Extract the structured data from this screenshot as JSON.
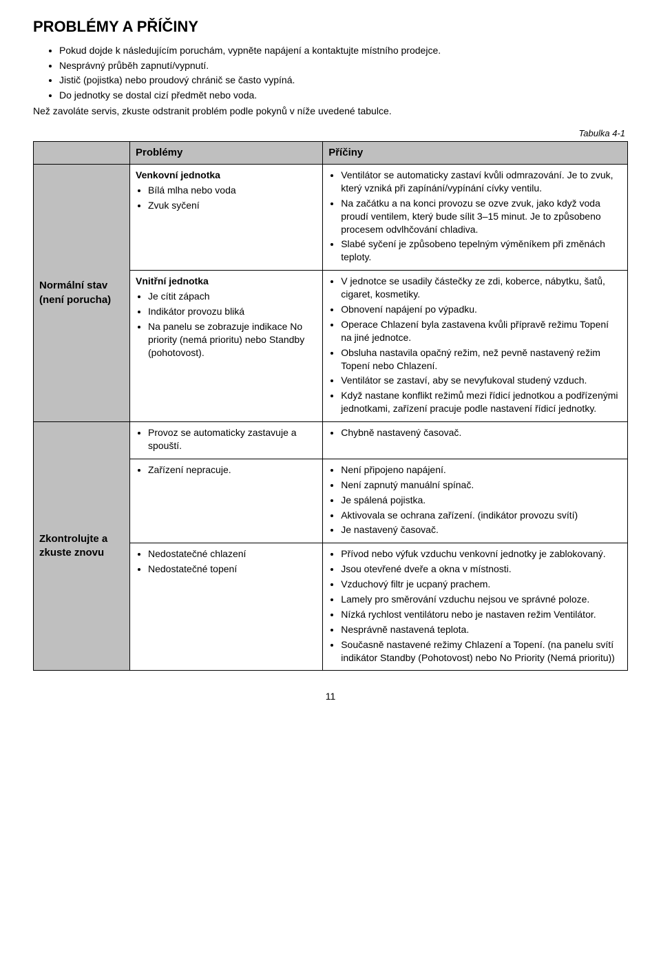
{
  "title": "PROBLÉMY A PŘÍČINY",
  "intro": {
    "bullets": [
      "Pokud dojde k následujícím poruchám, vypněte napájení a kontaktujte místního prodejce.",
      "Nesprávný průběh zapnutí/vypnutí.",
      "Jistič (pojistka) nebo proudový chránič se často vypíná.",
      "Do jednotky se dostal cizí předmět nebo voda."
    ],
    "note": "Než zavoláte servis, zkuste odstranit problém podle pokynů v níže uvedené tabulce."
  },
  "table_caption": "Tabulka 4-1",
  "headers": {
    "problems": "Problémy",
    "causes": "Příčiny"
  },
  "rows": {
    "normal": {
      "label": "Normální stav (není porucha)",
      "cells": [
        {
          "problem": {
            "subhead": "Venkovní jednotka",
            "items": [
              "Bílá mlha nebo voda",
              "Zvuk syčení"
            ]
          },
          "cause": {
            "items": [
              "Ventilátor se automaticky zastaví kvůli odmrazování. Je to zvuk, který vzniká při zapínání/vypínání cívky ventilu.",
              "Na začátku a na konci provozu se ozve zvuk, jako když voda proudí ventilem, který bude sílit 3–15 minut. Je to způsobeno procesem odvlhčování chladiva.",
              "Slabé syčení je způsobeno tepelným výměníkem při změnách teploty."
            ]
          }
        },
        {
          "problem": {
            "subhead": "Vnitřní jednotka",
            "items": [
              "Je cítit zápach",
              "Indikátor provozu bliká",
              "Na panelu se zobrazuje indikace No priority (nemá prioritu) nebo Standby (pohotovost)."
            ]
          },
          "cause": {
            "items": [
              "V jednotce se usadily částečky ze zdi, koberce, nábytku, šatů, cigaret, kosmetiky.",
              "Obnovení napájení po výpadku.",
              "Operace Chlazení byla zastavena kvůli přípravě režimu Topení na jiné jednotce.",
              "Obsluha nastavila opačný režim, než pevně nastavený režim Topení nebo Chlazení.",
              "Ventilátor se zastaví, aby se nevyfukoval studený vzduch.",
              "Když nastane konflikt režimů mezi řídicí jednotkou a podřízenými jednotkami, zařízení pracuje podle nastavení řídicí jednotky."
            ]
          }
        }
      ]
    },
    "check": {
      "label": "Zkontrolujte a zkuste znovu",
      "cells": [
        {
          "problem": {
            "items": [
              "Provoz se automaticky zastavuje a spouští."
            ]
          },
          "cause": {
            "items": [
              "Chybně nastavený časovač."
            ]
          }
        },
        {
          "problem": {
            "items": [
              "Zařízení nepracuje."
            ]
          },
          "cause": {
            "items": [
              "Není připojeno napájení.",
              "Není zapnutý manuální spínač.",
              "Je spálená pojistka.",
              "Aktivovala se ochrana zařízení. (indikátor provozu svítí)",
              "Je nastavený časovač."
            ]
          }
        },
        {
          "problem": {
            "items": [
              "Nedostatečné chlazení",
              "Nedostatečné topení"
            ]
          },
          "cause": {
            "items": [
              "Přívod nebo výfuk vzduchu venkovní jednotky je zablokovaný.",
              "Jsou otevřené dveře a okna v místnosti.",
              "Vzduchový filtr je ucpaný prachem.",
              "Lamely pro směrování vzduchu nejsou ve správné poloze.",
              "Nízká rychlost ventilátoru nebo je nastaven režim Ventilátor.",
              "Nesprávně nastavená teplota.",
              "Současně nastavené režimy Chlazení a Topení. (na panelu svítí indikátor Standby (Pohotovost) nebo No Priority (Nemá prioritu))"
            ]
          }
        }
      ]
    }
  },
  "page_number": "11"
}
